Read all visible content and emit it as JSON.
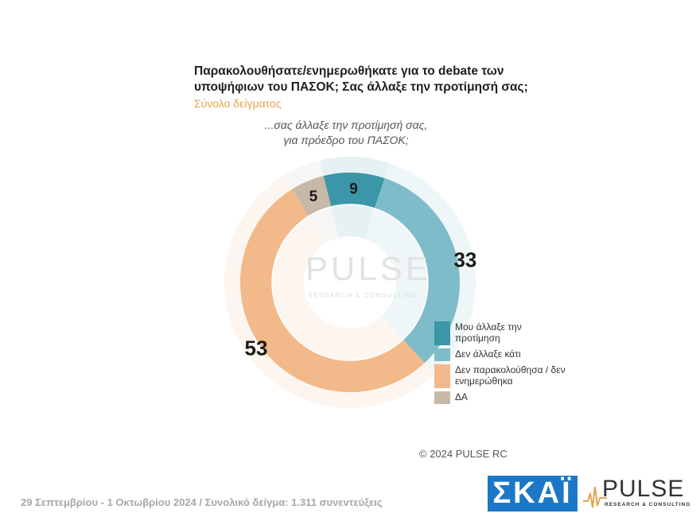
{
  "header": {
    "title": "Παρακολουθήσατε/ενημερωθήκατε για το debate των υποψήφιων του ΠΑΣΟΚ;  Σας άλλαξε την προτίμησή σας;",
    "subtitle": "Σύνολο δείγματος",
    "question_line1": "...σας άλλαξε την προτίμησή σας,",
    "question_line2": "για πρόεδρο του ΠΑΣΟΚ;"
  },
  "watermark": {
    "name": "PULSE",
    "sub": "RESEARCH & CONSULTING"
  },
  "chart_data": {
    "type": "pie",
    "subtype": "donut",
    "title": "...σας άλλαξε την προτίμησή σας, για πρόεδρο του ΠΑΣΟΚ;",
    "slices": [
      {
        "label": "Μου άλλαξε την προτίμηση",
        "value": 9,
        "color": "#3b96a8"
      },
      {
        "label": "Δεν άλλαξε κάτι",
        "value": 33,
        "color": "#7fbcc9"
      },
      {
        "label": "Δεν παρακολούθησα / δεν ενημερώθηκα",
        "value": 53,
        "color": "#f2b98a"
      },
      {
        "label": "ΔΑ",
        "value": 5,
        "color": "#c8b8a8"
      }
    ],
    "legend_position": "bottom-right"
  },
  "legend": [
    {
      "label": "Μου άλλαξε την προτίμηση",
      "color": "#3b96a8"
    },
    {
      "label": "Δεν άλλαξε κάτι",
      "color": "#7fbcc9"
    },
    {
      "label": "Δεν παρακολούθησα / δεν ενημερώθηκα",
      "color": "#f2b98a"
    },
    {
      "label": "ΔΑ",
      "color": "#c8b8a8"
    }
  ],
  "copyright": "© 2024 PULSE RC",
  "footer": {
    "text": "29 Σεπτεμβρίου - 1 Οκτωβρίου 2024  /  Συνολικό δείγμα:  1.311 συνεντεύξεις",
    "skai_logo": "ΣΚΑΪ",
    "pulse_logo": "PULSE",
    "pulse_logo_sub": "RESEARCH & CONSULTING"
  }
}
